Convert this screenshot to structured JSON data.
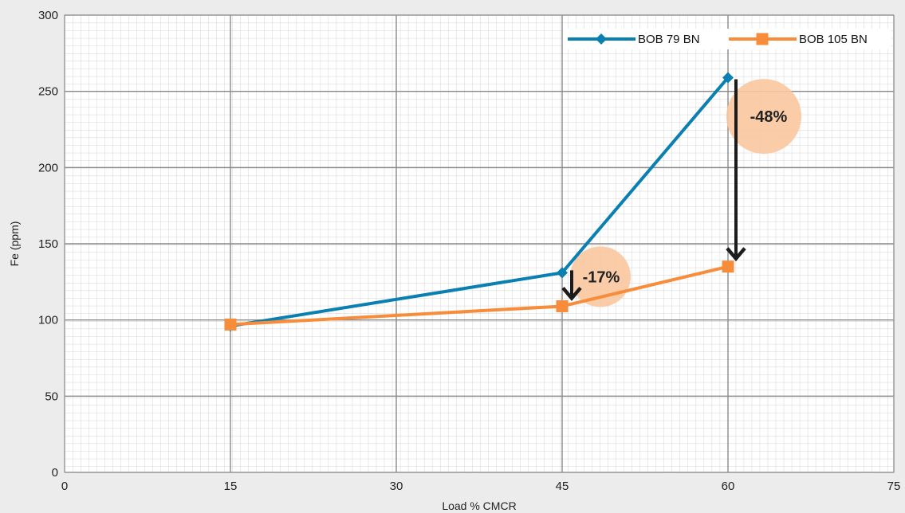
{
  "chart_data": {
    "type": "line",
    "xlabel": "Load % CMCR",
    "ylabel": "Fe (ppm)",
    "xlim": [
      0,
      75
    ],
    "ylim": [
      0,
      300
    ],
    "xticks": [
      0,
      15,
      30,
      45,
      60,
      75
    ],
    "yticks": [
      0,
      50,
      100,
      150,
      200,
      250,
      300
    ],
    "grid": true,
    "legend_position": "top-right",
    "series": [
      {
        "name": "BOB 79 BN",
        "color": "#0a7fb1",
        "marker": "diamond",
        "x": [
          15,
          45,
          60
        ],
        "y": [
          96,
          131,
          259
        ]
      },
      {
        "name": "BOB 105 BN",
        "color": "#f78c3a",
        "marker": "square",
        "x": [
          15,
          45,
          60
        ],
        "y": [
          97,
          109,
          135
        ]
      }
    ],
    "annotations": [
      {
        "text": "-17%",
        "x": 45,
        "from_y": 131,
        "to_y": 109
      },
      {
        "text": "-48%",
        "x": 60,
        "from_y": 259,
        "to_y": 135
      }
    ]
  }
}
